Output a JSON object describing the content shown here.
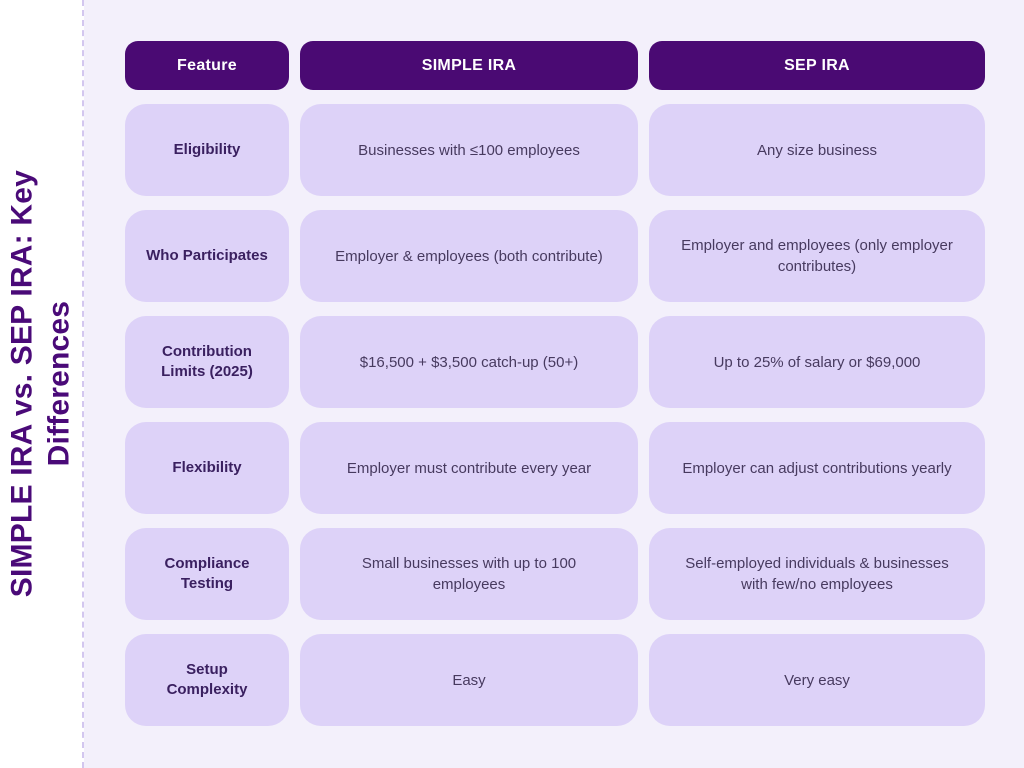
{
  "title": {
    "full": "SIMPLE IRA vs. SEP IRA: Key Differences",
    "lines": [
      "SIMPLE IRA vs. SEP IRA: Key",
      "Differences"
    ]
  },
  "chart_data": {
    "type": "table",
    "title": "SIMPLE IRA vs. SEP IRA: Key Differences",
    "columns": [
      "Feature",
      "SIMPLE IRA",
      "SEP IRA"
    ],
    "rows": [
      [
        "Eligibility",
        "Businesses with ≤100 employees",
        "Any size business"
      ],
      [
        "Who Participates",
        "Employer & employees (both contribute)",
        "Employer and employees (only employer contributes)"
      ],
      [
        "Contribution Limits (2025)",
        "$16,500 + $3,500 catch-up (50+)",
        "Up to 25% of salary or $69,000"
      ],
      [
        "Flexibility",
        "Employer must contribute every year",
        "Employer can adjust contributions yearly"
      ],
      [
        "Compliance Testing",
        "Small businesses with up to 100 employees",
        "Self-employed individuals & businesses with few/no employees"
      ],
      [
        "Setup Complexity",
        "Easy",
        "Very easy"
      ]
    ],
    "layout_hints": {
      "header_position": "top",
      "feature_column_position": "left",
      "title_orientation": "vertical-left"
    }
  },
  "colors": {
    "header_bg": "#4a0a73",
    "header_text": "#ffffff",
    "cell_bg": "#ddd2f8",
    "feature_text": "#3a2060",
    "value_text": "#473a5f",
    "title_text": "#4a0a78",
    "canvas_bg": "#f3f0fb",
    "strip_bg": "#ffffff",
    "divider": "#d3c7ef"
  }
}
